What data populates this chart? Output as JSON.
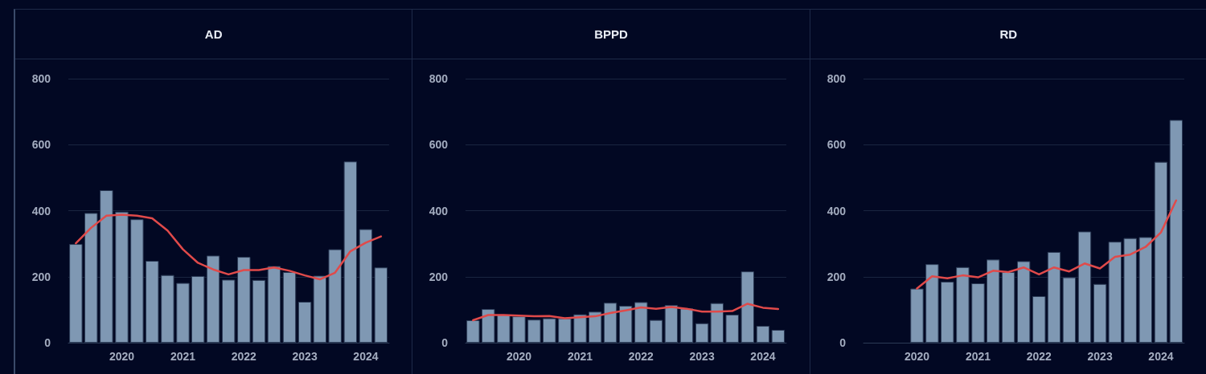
{
  "chart_data": [
    {
      "type": "bar",
      "title": "AD",
      "x": [
        "2019-04",
        "2019-07",
        "2019-10",
        "2020-01",
        "2020-04",
        "2020-07",
        "2020-10",
        "2021-01",
        "2021-04",
        "2021-07",
        "2021-10",
        "2022-01",
        "2022-04",
        "2022-07",
        "2022-10",
        "2023-01",
        "2023-04",
        "2023-07",
        "2023-10",
        "2024-01",
        "2024-04"
      ],
      "series": [
        {
          "color": "#7f98b3",
          "values": [
            299,
            393,
            462,
            397,
            374,
            248,
            205,
            181,
            202,
            264,
            191,
            260,
            190,
            232,
            214,
            124,
            203,
            283,
            549,
            344,
            228
          ]
        },
        {
          "type": "line",
          "color": "#e04a4a",
          "values": [
            301,
            348,
            385,
            388,
            385,
            377,
            340,
            283,
            242,
            222,
            207,
            220,
            220,
            228,
            218,
            204,
            192,
            212,
            277,
            303,
            322
          ]
        }
      ],
      "xlim": [
        "2019-02-15",
        "2024-05-20"
      ],
      "xticks": [
        "2020",
        "2021",
        "2022",
        "2023",
        "2024"
      ],
      "ylim": [
        0,
        800
      ],
      "yticks": [
        0,
        200,
        400,
        600,
        800
      ],
      "grid": "y",
      "marker": "none"
    },
    {
      "type": "bar",
      "title": "BPPD",
      "x": [
        "2019-04",
        "2019-07",
        "2019-10",
        "2020-01",
        "2020-04",
        "2020-07",
        "2020-10",
        "2021-01",
        "2021-04",
        "2021-07",
        "2021-10",
        "2022-01",
        "2022-04",
        "2022-07",
        "2022-10",
        "2023-01",
        "2023-04",
        "2023-07",
        "2023-10",
        "2024-01",
        "2024-04"
      ],
      "series": [
        {
          "color": "#7f98b3",
          "values": [
            68,
            102,
            85,
            80,
            70,
            74,
            74,
            86,
            94,
            121,
            112,
            123,
            69,
            114,
            104,
            59,
            120,
            85,
            216,
            51,
            39
          ]
        },
        {
          "type": "line",
          "color": "#e04a4a",
          "values": [
            68,
            84,
            84,
            82,
            80,
            81,
            74,
            77,
            80,
            90,
            98,
            107,
            103,
            108,
            103,
            94,
            94,
            96,
            118,
            106,
            102
          ]
        }
      ],
      "xlim": [
        "2019-02-15",
        "2024-05-20"
      ],
      "xticks": [
        "2020",
        "2021",
        "2022",
        "2023",
        "2024"
      ],
      "ylim": [
        0,
        800
      ],
      "yticks": [
        0,
        200,
        400,
        600,
        800
      ],
      "grid": "y",
      "marker": "none"
    },
    {
      "type": "bar",
      "title": "RD",
      "x": [
        "2020-01",
        "2020-04",
        "2020-07",
        "2020-10",
        "2021-01",
        "2021-04",
        "2021-07",
        "2021-10",
        "2022-01",
        "2022-04",
        "2022-07",
        "2022-10",
        "2023-01",
        "2023-04",
        "2023-07",
        "2023-10",
        "2024-01",
        "2024-04"
      ],
      "series": [
        {
          "color": "#7f98b3",
          "values": [
            164,
            238,
            185,
            229,
            180,
            252,
            214,
            247,
            141,
            275,
            198,
            337,
            178,
            306,
            317,
            320,
            548,
            675
          ]
        },
        {
          "type": "line",
          "color": "#e04a4a",
          "values": [
            164,
            201,
            195,
            204,
            198,
            218,
            214,
            228,
            207,
            228,
            216,
            240,
            225,
            260,
            267,
            290,
            334,
            431
          ]
        }
      ],
      "xlim": [
        "2019-02-15",
        "2024-05-20"
      ],
      "xticks": [
        "2020",
        "2021",
        "2022",
        "2023",
        "2024"
      ],
      "ylim": [
        0,
        800
      ],
      "yticks": [
        0,
        200,
        400,
        600,
        800
      ],
      "grid": "y",
      "marker": "none"
    }
  ]
}
